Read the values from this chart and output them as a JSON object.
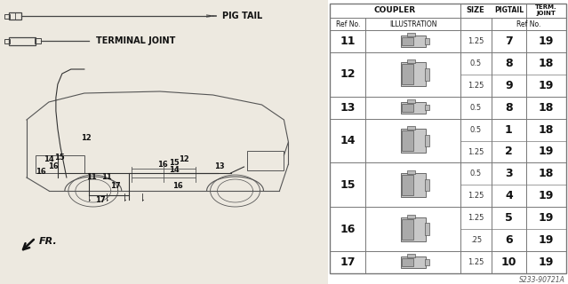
{
  "bg_color": "#ede9e0",
  "pigtail_label": "PIG TAIL",
  "terminal_label": "TERMINAL JOINT",
  "fr_label": "FR.",
  "diagram_note": "S233-90721A",
  "row_data": [
    {
      "ref": "11",
      "sub": [
        [
          "1.25",
          "7",
          "19"
        ]
      ]
    },
    {
      "ref": "12",
      "sub": [
        [
          "0.5",
          "8",
          "18"
        ],
        [
          "1.25",
          "9",
          "19"
        ]
      ]
    },
    {
      "ref": "13",
      "sub": [
        [
          "0.5",
          "8",
          "18"
        ]
      ]
    },
    {
      "ref": "14",
      "sub": [
        [
          "0.5",
          "1",
          "18"
        ],
        [
          "1.25",
          "2",
          "19"
        ]
      ]
    },
    {
      "ref": "15",
      "sub": [
        [
          "0.5",
          "3",
          "18"
        ],
        [
          "1.25",
          "4",
          "19"
        ]
      ]
    },
    {
      "ref": "16",
      "sub": [
        [
          "1.25",
          "5",
          "19"
        ],
        [
          ".25",
          "6",
          "19"
        ]
      ]
    },
    {
      "ref": "17",
      "sub": [
        [
          "1.25",
          "10",
          "19"
        ]
      ]
    }
  ],
  "n_subrows": [
    1,
    2,
    1,
    2,
    2,
    2,
    1
  ]
}
